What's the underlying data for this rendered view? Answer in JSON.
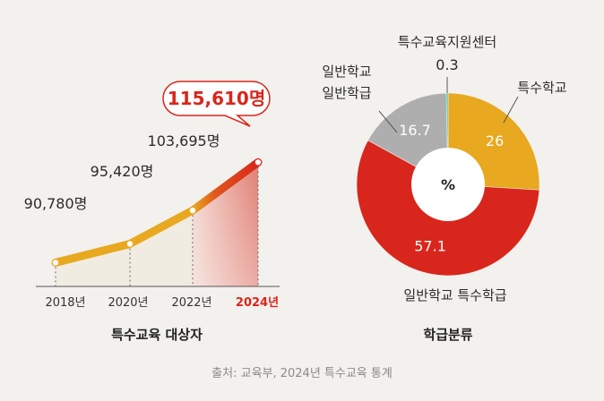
{
  "chart_data": [
    {
      "type": "line",
      "title": "특수교육 대상자",
      "categories": [
        "2018년",
        "2020년",
        "2022년",
        "2024년"
      ],
      "value_labels": [
        "90,780명",
        "95,420명",
        "103,695명",
        "115,610명"
      ],
      "series": [
        {
          "values": [
            90780,
            95420,
            103695,
            115610
          ]
        }
      ],
      "ylim": [
        86000,
        117000
      ],
      "highlight_index": 3,
      "colors": {
        "line": "#e8a81f",
        "highlight": "#d9261c",
        "area": "#f1ece1"
      }
    },
    {
      "type": "pie",
      "title": "학급분류",
      "center_label": "%",
      "slices": [
        {
          "label": "특수학교",
          "value": 26,
          "value_label": "26",
          "color": "#e8a81f"
        },
        {
          "label": "일반학교 특수학급",
          "value": 57.1,
          "value_label": "57.1",
          "color": "#d9261c"
        },
        {
          "label": "일반학교\n일반학급",
          "value": 16.7,
          "value_label": "16.7",
          "color": "#aeaeae"
        },
        {
          "label": "특수교육지원센터",
          "value": 0.3,
          "value_label": "0.3",
          "color": "#3cc3a0"
        }
      ]
    }
  ],
  "footer": {
    "source": "출처: 교육부, 2024년 특수교육 통계"
  }
}
